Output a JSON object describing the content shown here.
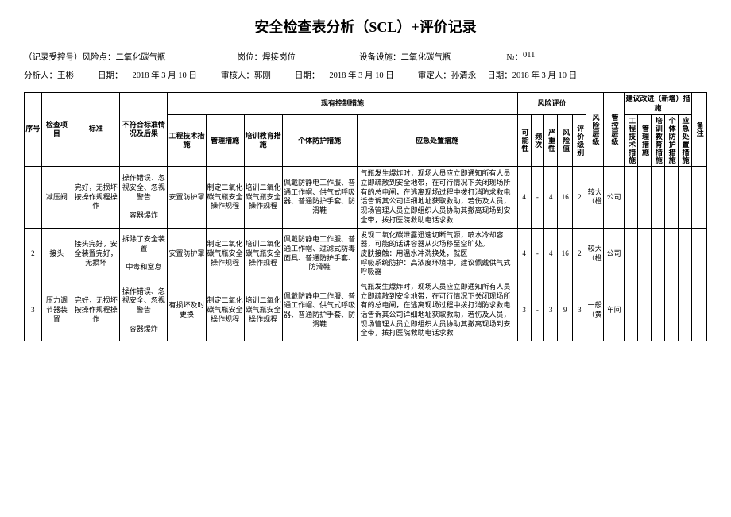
{
  "title": "安全检查表分析（SCL）+评价记录",
  "meta1": {
    "label_record": "（记录受控号）风险点：",
    "risk_point": "二氧化碳气瓶",
    "label_post": "岗位：",
    "post": "焊接岗位",
    "label_equip": "设备设施：",
    "equip": "二氧化碳气瓶",
    "label_no": "№：",
    "no": "011"
  },
  "meta2": {
    "label_analyst": "分析人：",
    "analyst": "王彬",
    "label_date1": "日期：",
    "date1": "2018 年 3 月 10 日",
    "label_reviewer": "审核人：",
    "reviewer": "郭刚",
    "label_date2": "日期：",
    "date2": "2018 年 3 月 10 日",
    "label_approver": "审定人：",
    "approver": "孙清永",
    "label_date3": "日期：",
    "date3": "2018 年 3 月 10 日"
  },
  "headers": {
    "seq": "序号",
    "item": "检查项目",
    "std": "标准",
    "noncomp": "不符合标准情况及后果",
    "existing": "现有控制措施",
    "eng": "工程技术措施",
    "mgmt": "管理措施",
    "train": "培训教育措施",
    "ppe": "个体防护措施",
    "emergency": "应急处置措施",
    "riskassess": "风险评价",
    "possibility": "可能性",
    "frequency": "频次",
    "severity": "严重性",
    "riskval": "风险值",
    "grade": "评价级别",
    "risklevel": "风险层级",
    "control": "管控层级",
    "suggest": "建议改进（新增）措施",
    "s_eng": "工程技术措施",
    "s_mgmt": "管理措施",
    "s_train": "培训教育措施",
    "s_ppe": "个体防护措施",
    "s_emerg": "应急处置措施",
    "remark": "备注"
  },
  "rows": [
    {
      "seq": "1",
      "item": "减压阀",
      "std": "完好，无损坏 按操作规程操作",
      "noncomp": "操作错误、忽视安全、忽视警告\n\n容器爆炸",
      "eng": "安置防护罩",
      "mgmt": "制定二氧化碳气瓶安全操作规程",
      "train": "培训二氧化碳气瓶安全操作规程",
      "ppe": "佩戴防静电工作服、普通工作帽、供气式呼吸器、普通防护手套、防滑鞋",
      "emergency": "气瓶发生爆炸时，现场人员应立即通知所有人员立即疏散到安全地带，在可行情况下关闭现场所有的总电闸，在逃离现场过程中拨打消防求救电话告诉其公司详细地址获取救助，若伤及人员，现场管理人员立即组织人员协助其撤离现场到安全带，拨打医院救助电话求救",
      "p": "4",
      "f": "-",
      "s": "4",
      "rv": "16",
      "g": "2",
      "rl": "较大（橙",
      "ctrl": "公司",
      "s1": "",
      "s2": "",
      "s3": "",
      "s4": "",
      "s5": "",
      "rm": ""
    },
    {
      "seq": "2",
      "item": "接头",
      "std": "接头完好，安全装置完好，无损坏",
      "noncomp": "拆除了安全装置\n\n中毒和窒息",
      "eng": "安置防护罩",
      "mgmt": "制定二氧化碳气瓶安全操作规程",
      "train": "培训二氧化碳气瓶安全操作规程",
      "ppe": "佩戴防静电工作服、普通工作帽、过滤式防毒面具、普通防护手套、防滑鞋",
      "emergency": "发现二氧化碳泄露迅速切断气源，喷水冷却容器，可能的话讲容器从火场移至空旷处。\n皮肤接触：用温水冲洗换处，就医\n呼吸系统防护：高浓度环境中，建议佩戴供气式呼吸器",
      "p": "4",
      "f": "-",
      "s": "4",
      "rv": "16",
      "g": "2",
      "rl": "较大（橙",
      "ctrl": "公司",
      "s1": "",
      "s2": "",
      "s3": "",
      "s4": "",
      "s5": "",
      "rm": ""
    },
    {
      "seq": "3",
      "item": "压力调节器装置",
      "std": "完好，无损坏 按操作规程操作",
      "noncomp": "操作错误、忽视安全、忽视警告\n\n容器爆炸",
      "eng": "有损坏及时更换",
      "mgmt": "制定二氧化碳气瓶安全操作规程",
      "train": "培训二氧化碳气瓶安全操作规程",
      "ppe": "佩戴防静电工作服、普通工作帽、供气式呼吸器、普通防护手套、防滑鞋",
      "emergency": "气瓶发生爆炸时，现场人员应立即通知所有人员立即疏散到安全地带，在可行情况下关闭现场所有的总电闸，在逃离现场过程中拨打消防求救电话告诉其公司详细地址获取救助，若伤及人员，现场管理人员立即组织人员协助其撤离现场到安全带，拨打医院救助电话求救",
      "p": "3",
      "f": "-",
      "s": "3",
      "rv": "9",
      "g": "3",
      "rl": "一般（黄",
      "ctrl": "车间",
      "s1": "",
      "s2": "",
      "s3": "",
      "s4": "",
      "s5": "",
      "rm": ""
    }
  ]
}
